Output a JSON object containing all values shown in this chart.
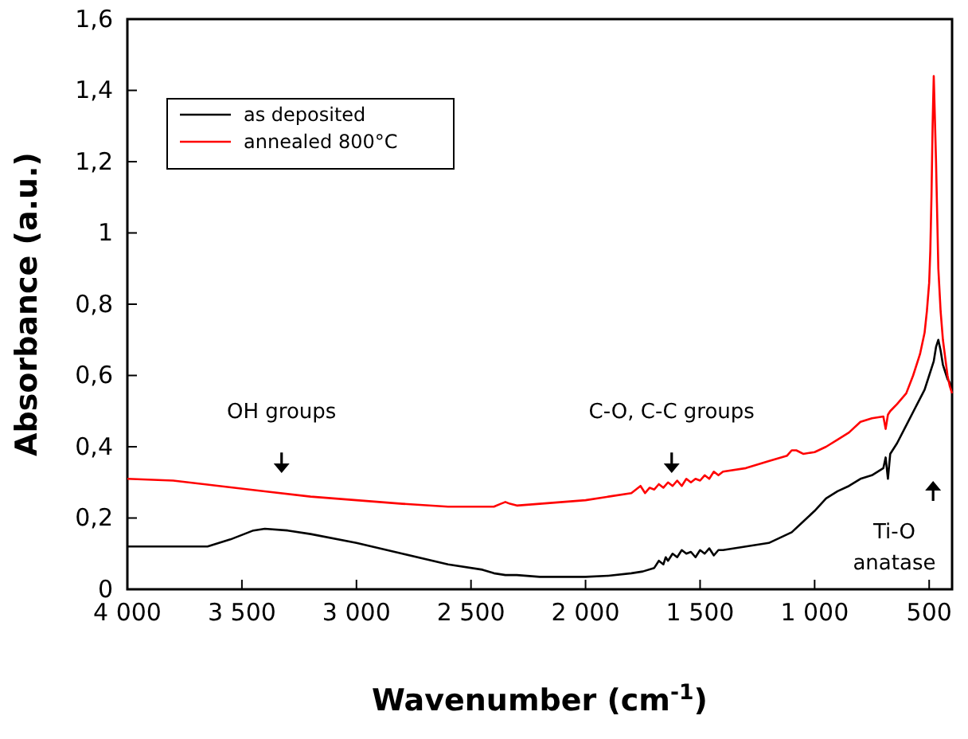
{
  "chart_data": {
    "type": "line",
    "xlabel": "Wavenumber (cm$^{-1}$)",
    "ylabel": "Absorbance (a.u.)",
    "xlim": [
      4000,
      400
    ],
    "xticks": [
      {
        "value": 4000,
        "label": "4 000"
      },
      {
        "value": 3500,
        "label": "3 500"
      },
      {
        "value": 3000,
        "label": "3 000"
      },
      {
        "value": 2500,
        "label": "2 500"
      },
      {
        "value": 2000,
        "label": "2 000"
      },
      {
        "value": 1500,
        "label": "1 500"
      },
      {
        "value": 1000,
        "label": "1 000"
      },
      500
    ],
    "ylim": [
      0,
      1.6
    ],
    "yticks": [
      0,
      {
        "value": 0.2,
        "label": "0,2"
      },
      {
        "value": 0.4,
        "label": "0,4"
      },
      {
        "value": 0.6,
        "label": "0,6"
      },
      {
        "value": 0.8,
        "label": "0,8"
      },
      1,
      {
        "value": 1.2,
        "label": "1,2"
      },
      {
        "value": 1.4,
        "label": "1,4"
      },
      {
        "value": 1.6,
        "label": "1,6"
      }
    ],
    "grid": false,
    "legend": "top left",
    "series": [
      {
        "name": "as deposited",
        "color": "#000000",
        "x": [
          4000,
          3800,
          3650,
          3550,
          3450,
          3400,
          3300,
          3200,
          3000,
          2800,
          2600,
          2450,
          2400,
          2350,
          2300,
          2200,
          2000,
          1900,
          1800,
          1750,
          1700,
          1680,
          1660,
          1650,
          1640,
          1620,
          1600,
          1580,
          1560,
          1540,
          1520,
          1500,
          1480,
          1460,
          1440,
          1420,
          1400,
          1300,
          1200,
          1100,
          1050,
          1000,
          950,
          900,
          850,
          800,
          750,
          700,
          690,
          680,
          670,
          640,
          600,
          560,
          520,
          500,
          480,
          470,
          460,
          450,
          440,
          430,
          420,
          410,
          400
        ],
        "values": [
          0.12,
          0.12,
          0.12,
          0.14,
          0.165,
          0.17,
          0.165,
          0.155,
          0.13,
          0.1,
          0.07,
          0.055,
          0.045,
          0.04,
          0.04,
          0.035,
          0.035,
          0.038,
          0.045,
          0.05,
          0.06,
          0.08,
          0.07,
          0.09,
          0.08,
          0.1,
          0.09,
          0.11,
          0.1,
          0.105,
          0.09,
          0.11,
          0.1,
          0.115,
          0.095,
          0.11,
          0.11,
          0.12,
          0.13,
          0.16,
          0.19,
          0.22,
          0.255,
          0.275,
          0.29,
          0.31,
          0.32,
          0.34,
          0.37,
          0.31,
          0.38,
          0.41,
          0.46,
          0.51,
          0.56,
          0.6,
          0.64,
          0.68,
          0.7,
          0.67,
          0.63,
          0.61,
          0.59,
          0.58,
          0.56
        ]
      },
      {
        "name": "annealed 800°C",
        "color": "#ff0000",
        "x": [
          4000,
          3800,
          3600,
          3400,
          3200,
          3000,
          2800,
          2600,
          2400,
          2370,
          2350,
          2330,
          2300,
          2200,
          2000,
          1900,
          1800,
          1760,
          1740,
          1720,
          1700,
          1680,
          1660,
          1640,
          1620,
          1600,
          1580,
          1560,
          1540,
          1520,
          1500,
          1480,
          1460,
          1440,
          1420,
          1400,
          1300,
          1200,
          1120,
          1100,
          1080,
          1050,
          1000,
          950,
          900,
          850,
          800,
          750,
          700,
          690,
          680,
          670,
          640,
          600,
          570,
          540,
          520,
          510,
          500,
          495,
          490,
          485,
          480,
          470,
          460,
          450,
          440,
          430,
          420,
          410,
          400
        ],
        "values": [
          0.31,
          0.305,
          0.29,
          0.275,
          0.26,
          0.25,
          0.24,
          0.232,
          0.232,
          0.24,
          0.245,
          0.24,
          0.235,
          0.24,
          0.25,
          0.26,
          0.27,
          0.29,
          0.27,
          0.285,
          0.28,
          0.295,
          0.285,
          0.3,
          0.29,
          0.305,
          0.29,
          0.31,
          0.3,
          0.31,
          0.305,
          0.32,
          0.31,
          0.33,
          0.32,
          0.33,
          0.34,
          0.36,
          0.375,
          0.39,
          0.39,
          0.38,
          0.385,
          0.4,
          0.42,
          0.44,
          0.47,
          0.48,
          0.485,
          0.45,
          0.49,
          0.5,
          0.52,
          0.55,
          0.6,
          0.66,
          0.72,
          0.78,
          0.86,
          0.95,
          1.1,
          1.3,
          1.44,
          1.2,
          0.9,
          0.78,
          0.7,
          0.65,
          0.6,
          0.57,
          0.55
        ]
      }
    ],
    "annotations": [
      "OH groups",
      "C-O, C-C groups",
      "Ti-O\nanatase"
    ]
  }
}
